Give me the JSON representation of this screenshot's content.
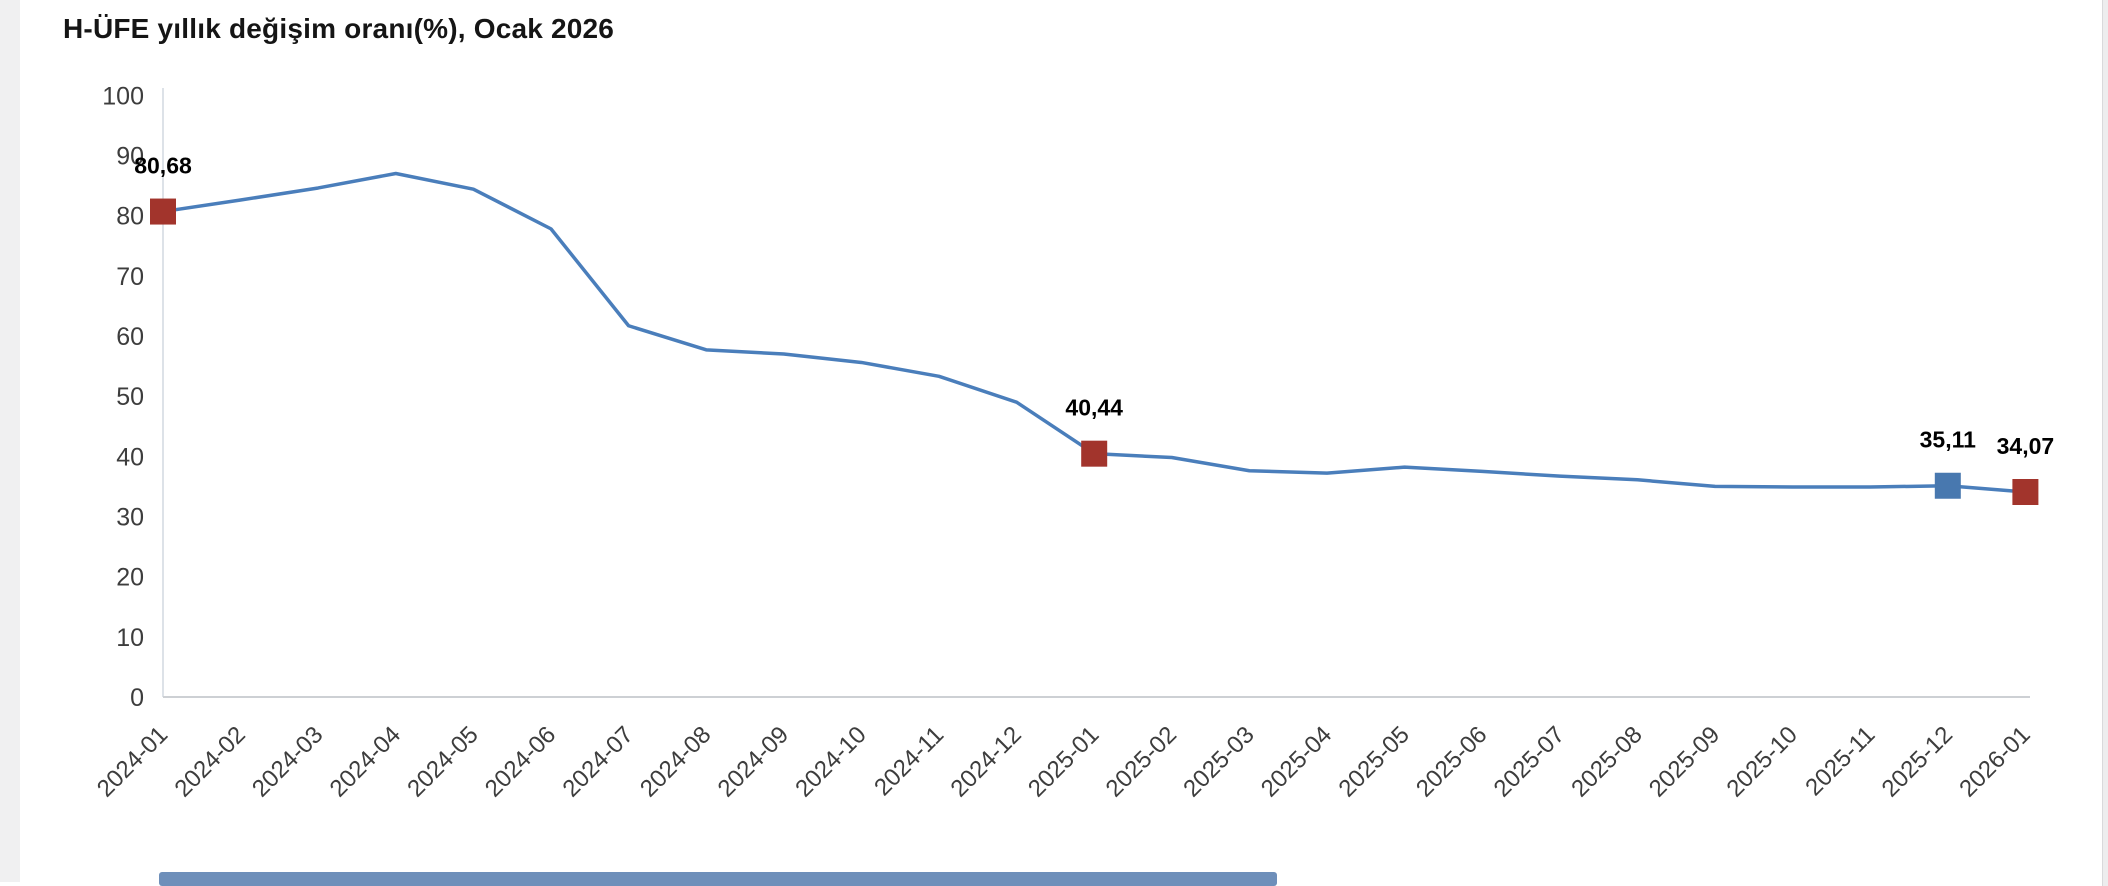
{
  "page": {
    "title": "H-ÜFE yıllık değişim oranı(%), Ocak 2026"
  },
  "colors": {
    "line": "#4a7ebb",
    "marker_red": "#a2342c",
    "marker_blue": "#4878af",
    "y_axis_line": "#dde2e8",
    "x_axis_line": "#cdd0d4",
    "tick_text": "#3d3d3d",
    "title_text": "#151515",
    "data_label_text": "#000000",
    "left_strip": "#f0f0f1",
    "bottom_bar": "#6e8fba"
  },
  "chart_data": {
    "type": "line",
    "title": "H-ÜFE yıllık değişim oranı(%), Ocak 2026",
    "xlabel": "",
    "ylabel": "",
    "grid": false,
    "legend": "none",
    "ylim": [
      0,
      100
    ],
    "ytick_step": 10,
    "yticks": [
      0,
      10,
      20,
      30,
      40,
      50,
      60,
      70,
      80,
      90,
      100
    ],
    "categories": [
      "2024-01",
      "2024-02",
      "2024-03",
      "2024-04",
      "2024-05",
      "2024-06",
      "2024-07",
      "2024-08",
      "2024-09",
      "2024-10",
      "2024-11",
      "2024-12",
      "2025-01",
      "2025-02",
      "2025-03",
      "2025-04",
      "2025-05",
      "2025-06",
      "2025-07",
      "2025-08",
      "2025-09",
      "2025-10",
      "2025-11",
      "2025-12",
      "2026-01"
    ],
    "values": [
      80.68,
      82.6,
      84.6,
      87.0,
      84.4,
      77.8,
      61.7,
      57.7,
      57.0,
      55.6,
      53.3,
      49.0,
      40.44,
      39.8,
      37.6,
      37.2,
      38.2,
      37.5,
      36.7,
      36.1,
      35.0,
      34.9,
      34.9,
      35.11,
      34.07
    ],
    "highlighted_points": [
      {
        "category": "2024-01",
        "value": 80.68,
        "label": "80,68",
        "marker_color": "red"
      },
      {
        "category": "2025-01",
        "value": 40.44,
        "label": "40,44",
        "marker_color": "red"
      },
      {
        "category": "2025-12",
        "value": 35.11,
        "label": "35,11",
        "marker_color": "blue"
      },
      {
        "category": "2026-01",
        "value": 34.07,
        "label": "34,07",
        "marker_color": "red"
      }
    ]
  }
}
